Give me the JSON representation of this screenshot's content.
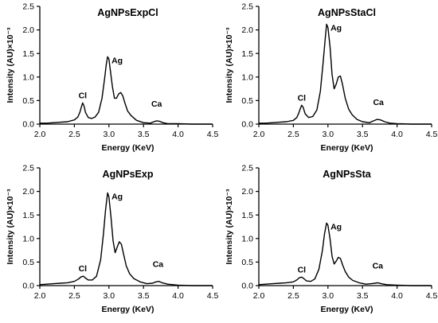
{
  "x_axis_label": "Energy (KeV)",
  "y_axis_label": "Intensity (AU)×10⁻³",
  "line_color": "#000000",
  "chart_data": [
    {
      "type": "line",
      "title": "AgNPsExpCl",
      "xlabel": "Energy (KeV)",
      "ylabel": "Intensity (AU)×10⁻³",
      "xlim": [
        2.0,
        4.5
      ],
      "ylim": [
        0.0,
        2.5
      ],
      "x_ticks": [
        "2.0",
        "2.5",
        "3.0",
        "3.5",
        "4.0",
        "4.5"
      ],
      "y_ticks": [
        "0.0",
        "0.5",
        "1.0",
        "1.5",
        "2.0",
        "2.5"
      ],
      "peak_labels": [
        {
          "text": "Cl",
          "x": 2.62,
          "y": 0.45
        },
        {
          "text": "Ag",
          "x": 2.98,
          "y": 1.43
        },
        {
          "text": "Ca",
          "x": 3.69,
          "y": 0.07
        }
      ],
      "x": [
        2.0,
        2.1,
        2.2,
        2.3,
        2.4,
        2.5,
        2.55,
        2.58,
        2.6,
        2.62,
        2.64,
        2.66,
        2.7,
        2.75,
        2.8,
        2.85,
        2.9,
        2.94,
        2.96,
        2.98,
        3.0,
        3.02,
        3.05,
        3.08,
        3.11,
        3.14,
        3.17,
        3.2,
        3.23,
        3.27,
        3.32,
        3.4,
        3.5,
        3.6,
        3.65,
        3.69,
        3.73,
        3.78,
        3.85,
        4.0,
        4.2,
        4.5
      ],
      "y": [
        0.02,
        0.02,
        0.03,
        0.04,
        0.05,
        0.09,
        0.15,
        0.25,
        0.36,
        0.45,
        0.38,
        0.25,
        0.14,
        0.12,
        0.15,
        0.25,
        0.55,
        1.0,
        1.25,
        1.43,
        1.38,
        1.15,
        0.8,
        0.55,
        0.55,
        0.64,
        0.67,
        0.6,
        0.45,
        0.28,
        0.18,
        0.08,
        0.03,
        0.02,
        0.05,
        0.07,
        0.06,
        0.03,
        0.01,
        0.01,
        0.0,
        0.0
      ]
    },
    {
      "type": "line",
      "title": "AgNPsStaCl",
      "xlabel": "Energy (KeV)",
      "ylabel": "Intensity (AU)×10⁻³",
      "xlim": [
        2.0,
        4.5
      ],
      "ylim": [
        0.0,
        2.5
      ],
      "x_ticks": [
        "2.0",
        "2.5",
        "3.0",
        "3.5",
        "4.0",
        "4.5"
      ],
      "y_ticks": [
        "0.0",
        "0.5",
        "1.0",
        "1.5",
        "2.0",
        "2.5"
      ],
      "peak_labels": [
        {
          "text": "Cl",
          "x": 2.62,
          "y": 0.4
        },
        {
          "text": "Ag",
          "x": 2.98,
          "y": 2.12
        },
        {
          "text": "Ca",
          "x": 3.73,
          "y": 0.1
        }
      ],
      "x": [
        2.0,
        2.1,
        2.2,
        2.3,
        2.4,
        2.5,
        2.55,
        2.58,
        2.6,
        2.62,
        2.64,
        2.67,
        2.72,
        2.78,
        2.84,
        2.89,
        2.93,
        2.96,
        2.98,
        3.0,
        3.03,
        3.06,
        3.09,
        3.12,
        3.15,
        3.18,
        3.21,
        3.25,
        3.3,
        3.35,
        3.42,
        3.5,
        3.6,
        3.66,
        3.71,
        3.76,
        3.82,
        3.9,
        4.0,
        4.2,
        4.5
      ],
      "y": [
        0.02,
        0.02,
        0.03,
        0.04,
        0.05,
        0.08,
        0.14,
        0.24,
        0.33,
        0.4,
        0.36,
        0.22,
        0.14,
        0.16,
        0.3,
        0.7,
        1.3,
        1.8,
        2.12,
        2.05,
        1.65,
        1.05,
        0.75,
        0.85,
        1.0,
        1.02,
        0.85,
        0.55,
        0.32,
        0.2,
        0.1,
        0.05,
        0.03,
        0.07,
        0.1,
        0.09,
        0.05,
        0.02,
        0.01,
        0.0,
        0.0
      ]
    },
    {
      "type": "line",
      "title": "AgNPsExp",
      "xlabel": "Energy (KeV)",
      "ylabel": "Intensity (AU)×10⁻³",
      "xlim": [
        2.0,
        4.5
      ],
      "ylim": [
        0.0,
        2.5
      ],
      "x_ticks": [
        "2.0",
        "2.5",
        "3.0",
        "3.5",
        "4.0",
        "4.5"
      ],
      "y_ticks": [
        "0.0",
        "0.5",
        "1.0",
        "1.5",
        "2.0",
        "2.5"
      ],
      "peak_labels": [
        {
          "text": "Cl",
          "x": 2.62,
          "y": 0.2
        },
        {
          "text": "Ag",
          "x": 2.98,
          "y": 1.97
        },
        {
          "text": "Ca",
          "x": 3.71,
          "y": 0.09
        }
      ],
      "x": [
        2.0,
        2.1,
        2.2,
        2.3,
        2.4,
        2.5,
        2.56,
        2.6,
        2.63,
        2.66,
        2.7,
        2.76,
        2.82,
        2.88,
        2.92,
        2.95,
        2.98,
        3.0,
        3.03,
        3.06,
        3.09,
        3.12,
        3.15,
        3.18,
        3.21,
        3.25,
        3.3,
        3.36,
        3.45,
        3.55,
        3.63,
        3.68,
        3.72,
        3.77,
        3.85,
        4.0,
        4.2,
        4.5
      ],
      "y": [
        0.02,
        0.03,
        0.04,
        0.05,
        0.06,
        0.09,
        0.14,
        0.19,
        0.2,
        0.16,
        0.12,
        0.12,
        0.2,
        0.55,
        1.1,
        1.6,
        1.97,
        1.88,
        1.45,
        0.95,
        0.7,
        0.82,
        0.93,
        0.88,
        0.68,
        0.42,
        0.25,
        0.15,
        0.08,
        0.04,
        0.05,
        0.08,
        0.09,
        0.06,
        0.03,
        0.01,
        0.0,
        0.0
      ]
    },
    {
      "type": "line",
      "title": "AgNPsSta",
      "xlabel": "Energy (KeV)",
      "ylabel": "Intensity (AU)×10⁻³",
      "xlim": [
        2.0,
        4.5
      ],
      "ylim": [
        0.0,
        2.5
      ],
      "x_ticks": [
        "2.0",
        "2.5",
        "3.0",
        "3.5",
        "4.0",
        "4.5"
      ],
      "y_ticks": [
        "0.0",
        "0.5",
        "1.0",
        "1.5",
        "2.0",
        "2.5"
      ],
      "peak_labels": [
        {
          "text": "Cl",
          "x": 2.62,
          "y": 0.18
        },
        {
          "text": "Ag",
          "x": 2.98,
          "y": 1.33
        },
        {
          "text": "Ca",
          "x": 3.72,
          "y": 0.06
        }
      ],
      "x": [
        2.0,
        2.1,
        2.2,
        2.3,
        2.4,
        2.5,
        2.55,
        2.59,
        2.62,
        2.65,
        2.69,
        2.75,
        2.81,
        2.87,
        2.92,
        2.95,
        2.98,
        3.0,
        3.03,
        3.06,
        3.09,
        3.12,
        3.15,
        3.18,
        3.21,
        3.25,
        3.3,
        3.36,
        3.45,
        3.55,
        3.63,
        3.68,
        3.72,
        3.77,
        3.85,
        4.0,
        4.2,
        4.5
      ],
      "y": [
        0.02,
        0.03,
        0.04,
        0.05,
        0.06,
        0.08,
        0.12,
        0.17,
        0.18,
        0.15,
        0.1,
        0.09,
        0.14,
        0.35,
        0.75,
        1.1,
        1.33,
        1.28,
        1.0,
        0.62,
        0.46,
        0.52,
        0.6,
        0.58,
        0.45,
        0.3,
        0.18,
        0.11,
        0.06,
        0.03,
        0.04,
        0.05,
        0.06,
        0.04,
        0.02,
        0.01,
        0.0,
        0.0
      ]
    }
  ]
}
